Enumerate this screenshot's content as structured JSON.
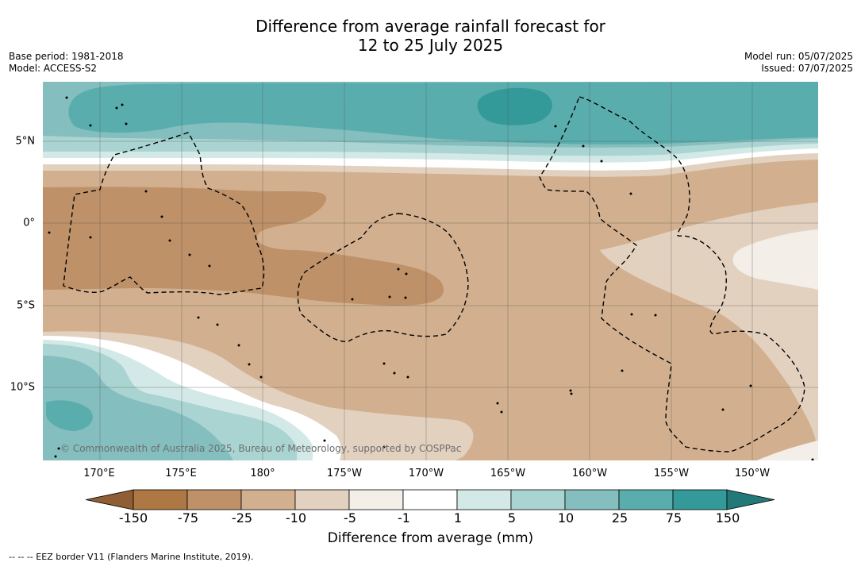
{
  "title_line1": "Difference from average rainfall forecast for",
  "title_line2": "12 to 25 July 2025",
  "meta_left": {
    "base_period": "Base period: 1981-2018",
    "model": "Model: ACCESS-S2"
  },
  "meta_right": {
    "model_run": "Model run: 05/07/2025",
    "issued": "Issued: 07/07/2025"
  },
  "lon_labels": [
    "170°E",
    "175°E",
    "180°",
    "175°W",
    "170°W",
    "165°W",
    "160°W",
    "155°W",
    "150°W"
  ],
  "lat_labels": [
    "5°N",
    "0°",
    "5°S",
    "10°S"
  ],
  "colorbar": {
    "ticks": [
      "-150",
      "-75",
      "-25",
      "-10",
      "-5",
      "-1",
      "1",
      "5",
      "10",
      "25",
      "75",
      "150"
    ],
    "colors": [
      "#8f5e34",
      "#ad7843",
      "#be9168",
      "#d2b08f",
      "#e3d1c0",
      "#f3eee8",
      "#ffffff",
      "#d3e9e7",
      "#aad4d1",
      "#84bebe",
      "#5aadad",
      "#339a99",
      "#227978"
    ],
    "label": "Difference from average (mm)"
  },
  "copyright": "© Commonwealth of Australia 2025, Bureau of Meteorology, supported by COSPPac",
  "footnote": "--  --  -- EEZ border V11 (Flanders Marine Institute, 2019)."
}
